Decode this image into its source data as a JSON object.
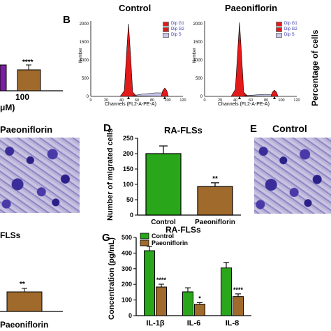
{
  "panel_a": {
    "category_label": "100",
    "unit_label": "μM)",
    "significance": "****",
    "bar_colors": [
      "#7b1fa2",
      "#a06a2c"
    ]
  },
  "panel_b": {
    "letter": "B",
    "histograms": [
      {
        "title": "Control",
        "xlabel": "Channels (FL2-A-PE-A)",
        "ylabel": "Number",
        "y_ticks": [
          "0",
          "500",
          "1000",
          "1500",
          "2000"
        ],
        "x_ticks": [
          "0",
          "20",
          "40",
          "60",
          "80",
          "100",
          "120"
        ],
        "legend": [
          "Dip G1",
          "Dip G2",
          "Dip S"
        ]
      },
      {
        "title": "Paeoniflorin",
        "xlabel": "Channels (FL2-A-PE-A)",
        "ylabel": "Number",
        "y_ticks": [
          "0",
          "500",
          "1000",
          "1500",
          "2000"
        ],
        "x_ticks": [
          "0",
          "20",
          "40",
          "60",
          "80",
          "100",
          "120"
        ],
        "legend": [
          "Dip G1",
          "Dip G2",
          "Dip S"
        ]
      }
    ],
    "right_axis_label": "Percentage of cells",
    "colors": {
      "g1": "#e21a1a",
      "g2": "#e21a1a",
      "s": "#c8c8ee"
    }
  },
  "panel_c_image_label": "Paeoniflorin",
  "panel_d": {
    "letter": "D",
    "ylabel": "Number of migrated cells"
  },
  "panel_e": {
    "letter": "E",
    "image_label": "Control"
  },
  "panel_f": {
    "title_fragment": "FLSs",
    "category_label": "Paeoniflorin",
    "significance": "**",
    "bar_color": "#a06a2c"
  },
  "panel_g": {
    "letter": "G",
    "ylabel": "Concentration (pg/mL)"
  },
  "chart_data": [
    {
      "type": "bar",
      "panel": "D",
      "title": "RA-FLSs",
      "ylabel": "Number of migrated cells",
      "categories": [
        "Control",
        "Paeoniflorin"
      ],
      "values": [
        200,
        93
      ],
      "errors": [
        25,
        12
      ],
      "colors": [
        "#2aa61a",
        "#a06a2c"
      ],
      "annotations": [
        "",
        "**"
      ],
      "ylim": [
        0,
        250
      ],
      "yticks": [
        0,
        50,
        100,
        150,
        200,
        250
      ],
      "grid": false
    },
    {
      "type": "bar",
      "panel": "G",
      "title": "RA-FLSs",
      "ylabel": "Concentration (pg/mL)",
      "categories": [
        "IL-1β",
        "IL-6",
        "IL-8"
      ],
      "series": [
        {
          "name": "Control",
          "color": "#2aa61a",
          "values": [
            415,
            152,
            305
          ],
          "errors": [
            28,
            26,
            35
          ]
        },
        {
          "name": "Paeoniflorin",
          "color": "#a06a2c",
          "values": [
            183,
            73,
            122
          ],
          "errors": [
            18,
            10,
            17
          ]
        }
      ],
      "annotations": [
        "****",
        "*",
        "****"
      ],
      "ylim": [
        0,
        500
      ],
      "yticks": [
        0,
        100,
        200,
        300,
        400,
        500
      ],
      "legend": "top-left",
      "grid": false
    }
  ]
}
